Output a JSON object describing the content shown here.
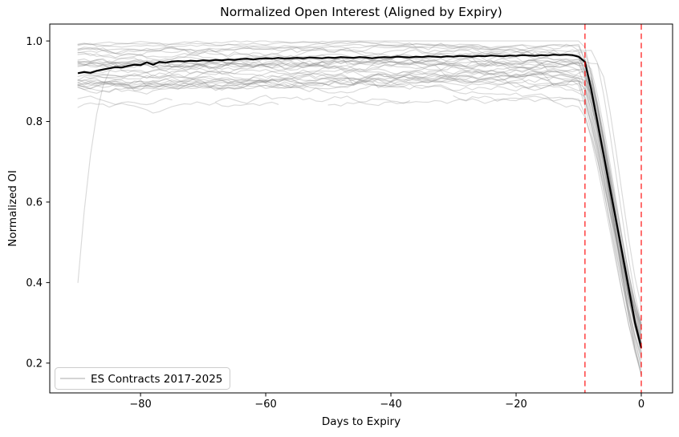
{
  "chart_data": {
    "type": "line",
    "title": "Normalized Open Interest (Aligned by Expiry)",
    "xlabel": "Days to Expiry",
    "ylabel": "Normalized OI",
    "xlim": [
      -94.5,
      5.0
    ],
    "ylim": [
      0.126,
      1.042
    ],
    "grid": false,
    "xticks": {
      "values": [
        -80,
        -60,
        -40,
        -20,
        0
      ],
      "labels": [
        "−80",
        "−60",
        "−40",
        "−20",
        "0"
      ]
    },
    "yticks": {
      "values": [
        0.2,
        0.4,
        0.6,
        0.8,
        1.0
      ],
      "labels": [
        "0.2",
        "0.4",
        "0.6",
        "0.8",
        "1.0"
      ]
    },
    "legend": {
      "position": "lower left",
      "entries": [
        {
          "label": "ES Contracts 2017-2025",
          "color": "#808080",
          "opacity": 0.3
        }
      ]
    },
    "vlines": [
      {
        "x": -9,
        "color": "#ff0000",
        "opacity": 0.7,
        "style": "dashed",
        "width": 1.6
      },
      {
        "x": 0,
        "color": "#ff0000",
        "opacity": 0.7,
        "style": "dashed",
        "width": 1.6
      }
    ],
    "mean_line": {
      "name": "mean-normalized-oi",
      "color": "#000000",
      "width": 2.2,
      "x_start": -90,
      "x_step": 1,
      "values": [
        0.92,
        0.923,
        0.921,
        0.926,
        0.929,
        0.932,
        0.935,
        0.934,
        0.938,
        0.941,
        0.94,
        0.947,
        0.941,
        0.948,
        0.946,
        0.949,
        0.95,
        0.949,
        0.951,
        0.95,
        0.952,
        0.951,
        0.953,
        0.952,
        0.954,
        0.953,
        0.955,
        0.956,
        0.954,
        0.956,
        0.957,
        0.956,
        0.958,
        0.956,
        0.957,
        0.958,
        0.957,
        0.959,
        0.958,
        0.957,
        0.959,
        0.958,
        0.96,
        0.959,
        0.958,
        0.96,
        0.959,
        0.957,
        0.959,
        0.96,
        0.959,
        0.961,
        0.96,
        0.959,
        0.961,
        0.96,
        0.962,
        0.961,
        0.96,
        0.962,
        0.961,
        0.963,
        0.962,
        0.961,
        0.963,
        0.962,
        0.964,
        0.963,
        0.962,
        0.964,
        0.963,
        0.965,
        0.964,
        0.963,
        0.965,
        0.964,
        0.966,
        0.965,
        0.966,
        0.965,
        0.961,
        0.948,
        0.88,
        0.798,
        0.716,
        0.634,
        0.552,
        0.47,
        0.386,
        0.3,
        0.238
      ]
    },
    "ensemble": {
      "description": "Individual ES futures contracts 2017-2025, open interest normalized to each contract's maximum, aligned so expiry = day 0; flat band ~0.85-1.0 until roll (~day -9), then steep drop to ~0.17-0.30 at day 0",
      "count": 32,
      "seed": 7,
      "start_day": -90,
      "end_day": 0,
      "base_min": 0.878,
      "base_max": 0.992,
      "daily_noise": 0.0075,
      "dip_size": 0.012,
      "drift_min": 0.004,
      "drift_max": 0.022,
      "sag_prob": 0.22,
      "sag_min": 0.03,
      "sag_max": 0.09,
      "drop_start_min": -10.3,
      "drop_start_max": -8.1,
      "final_min": 0.17,
      "final_max": 0.3,
      "color": "#808080",
      "opacity": 0.3,
      "width": 1.15,
      "specials": [
        {
          "kind": "riser",
          "start_value": 0.4,
          "join_day": -84,
          "base": 0.935
        },
        {
          "kind": "low",
          "base": 0.853,
          "gaps": [
            [
              -74,
              -69
            ],
            [
              -36,
              -31
            ]
          ]
        },
        {
          "kind": "low",
          "base": 0.842,
          "gaps": [
            [
              -57,
              -51
            ]
          ]
        },
        {
          "kind": "late",
          "base": 0.94,
          "drop_start": -6.5,
          "final": 0.34
        },
        {
          "kind": "late",
          "base": 0.97,
          "drop_start": -7.5,
          "final": 0.3
        }
      ]
    }
  }
}
